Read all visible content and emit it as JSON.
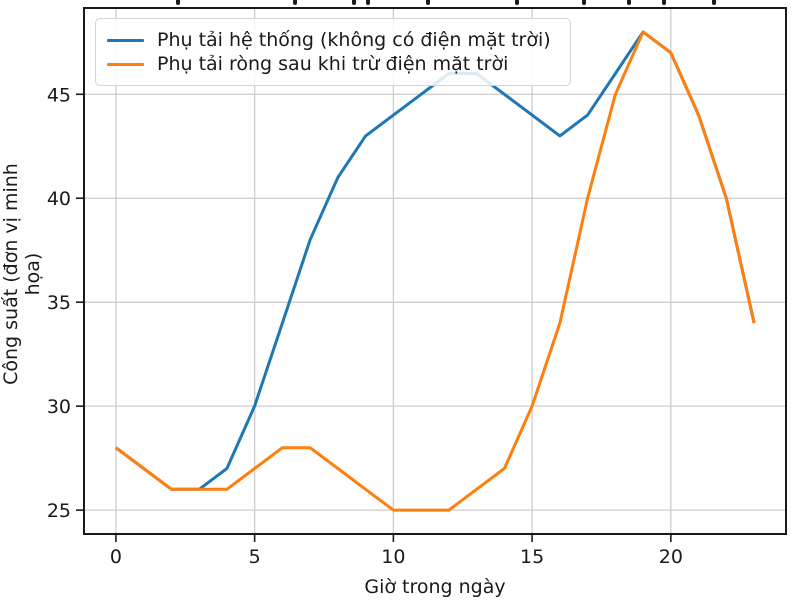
{
  "figure": {
    "background": "#ffffff",
    "note_title_clipped": "title text cropped at top edge of image"
  },
  "chart_data": {
    "type": "line",
    "x": [
      0,
      1,
      2,
      3,
      4,
      5,
      6,
      7,
      8,
      9,
      10,
      11,
      12,
      13,
      14,
      15,
      16,
      17,
      18,
      19,
      20,
      21,
      22,
      23
    ],
    "series": [
      {
        "name": "Phụ tải hệ thống (không có điện mặt trời)",
        "color": "#1f77b4",
        "values": [
          28,
          27,
          26,
          26,
          27,
          30,
          34,
          38,
          41,
          43,
          44,
          45,
          46,
          46,
          45,
          44,
          43,
          44,
          46,
          48,
          47,
          44,
          40,
          34
        ]
      },
      {
        "name": "Phụ tải ròng sau khi trừ điện mặt trời",
        "color": "#ff7f0e",
        "values": [
          28,
          27,
          26,
          26,
          26,
          27,
          28,
          28,
          27,
          26,
          25,
          25,
          25,
          26,
          27,
          30,
          34,
          40,
          45,
          48,
          47,
          44,
          40,
          34
        ]
      }
    ],
    "xlabel": "Giờ trong ngày",
    "ylabel": "Công suất (đơn vị minh họa)",
    "xticks": [
      0,
      5,
      10,
      15,
      20
    ],
    "yticks": [
      25,
      30,
      35,
      40,
      45
    ],
    "xlim": [
      -1.15,
      24.15
    ],
    "ylim": [
      23.85,
      49.15
    ],
    "grid": true,
    "grid_color": "#cdcdcd",
    "axis_color": "#1a1a1a",
    "legend_position": "upper left",
    "line_width": 3
  }
}
